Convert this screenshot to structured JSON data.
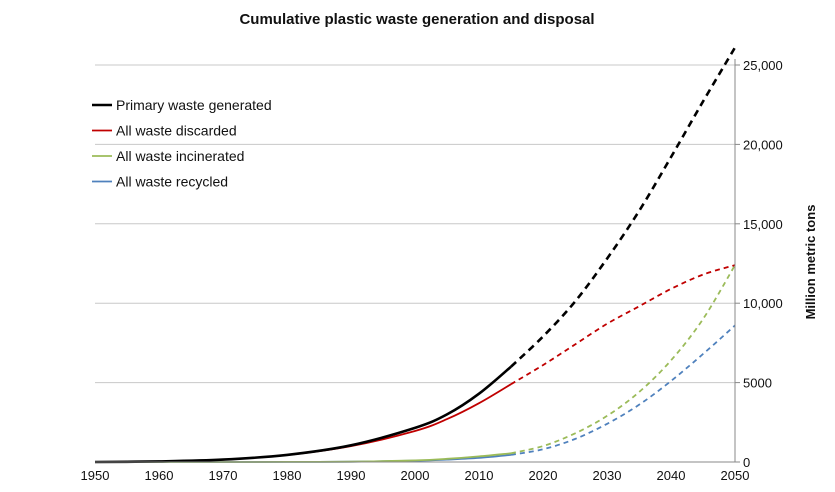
{
  "chart_data": {
    "type": "line",
    "title": "Cumulative plastic waste generation and disposal",
    "xlabel": "",
    "ylabel": "Million metric tons",
    "xlim": [
      1950,
      2050
    ],
    "ylim": [
      0,
      25000
    ],
    "x_ticks": [
      1950,
      1960,
      1970,
      1980,
      1990,
      2000,
      2010,
      2020,
      2030,
      2040,
      2050
    ],
    "y_ticks": [
      0,
      5000,
      10000,
      15000,
      20000,
      25000
    ],
    "y_tick_labels": [
      "0",
      "5000",
      "10,000",
      "15,000",
      "20,000",
      "25,000"
    ],
    "grid": true,
    "legend_position": "top-left",
    "series": [
      {
        "name": "Primary waste generated",
        "color": "#000000",
        "x": [
          1950,
          1960,
          1970,
          1980,
          1990,
          2000,
          2005,
          2010,
          2015,
          2020,
          2025,
          2030,
          2035,
          2040,
          2045,
          2050
        ],
        "y": [
          0,
          40,
          150,
          450,
          1050,
          2150,
          3000,
          4300,
          6000,
          7900,
          10100,
          12800,
          15800,
          19200,
          22700,
          26100
        ],
        "solid_until": 2015
      },
      {
        "name": "All waste discarded",
        "color": "#c00000",
        "x": [
          1950,
          1960,
          1970,
          1980,
          1990,
          2000,
          2005,
          2010,
          2015,
          2020,
          2025,
          2030,
          2035,
          2040,
          2045,
          2050
        ],
        "y": [
          0,
          40,
          145,
          440,
          1000,
          1950,
          2700,
          3700,
          4900,
          6100,
          7400,
          8700,
          9800,
          10900,
          11800,
          12400
        ],
        "solid_until": 2015
      },
      {
        "name": "All waste incinerated",
        "color": "#9bbb59",
        "x": [
          1950,
          1960,
          1970,
          1980,
          1990,
          2000,
          2005,
          2010,
          2015,
          2020,
          2025,
          2030,
          2035,
          2040,
          2045,
          2050
        ],
        "y": [
          0,
          0,
          0,
          5,
          20,
          100,
          200,
          350,
          550,
          1000,
          1800,
          2900,
          4400,
          6400,
          9000,
          12400
        ],
        "solid_until": 2015
      },
      {
        "name": "All waste recycled",
        "color": "#4f81bd",
        "x": [
          1950,
          1960,
          1970,
          1980,
          1990,
          2000,
          2005,
          2010,
          2015,
          2020,
          2025,
          2030,
          2035,
          2040,
          2045,
          2050
        ],
        "y": [
          0,
          0,
          0,
          5,
          20,
          80,
          150,
          260,
          450,
          800,
          1450,
          2400,
          3600,
          5100,
          6800,
          8600
        ],
        "solid_until": 2015
      }
    ]
  }
}
